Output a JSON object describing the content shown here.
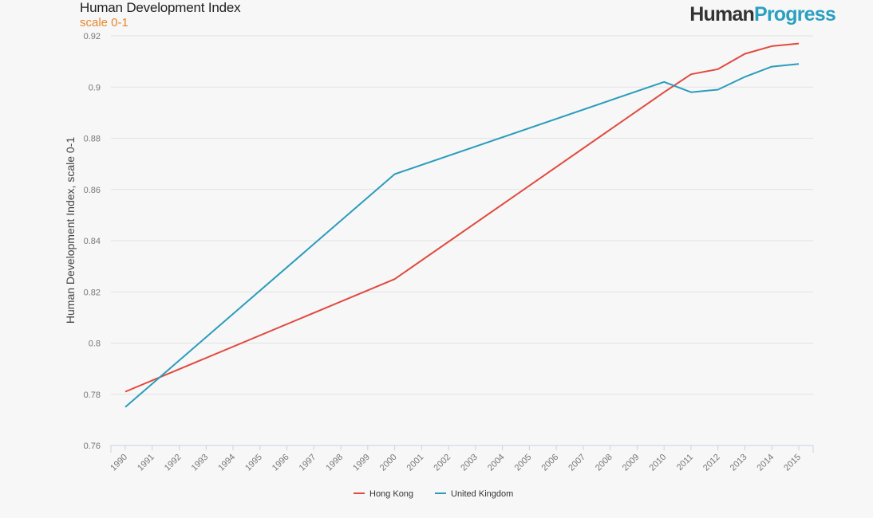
{
  "header": {
    "title": "Human Development Index",
    "subtitle": "scale 0-1",
    "logo_part1": "Human",
    "logo_part2": "Progress"
  },
  "chart_data": {
    "type": "line",
    "title": "Human Development Index",
    "subtitle": "scale 0-1",
    "ylabel": "Human Development Index, scale 0-1",
    "xlabel": "",
    "ylim": [
      0.76,
      0.92
    ],
    "yticks": [
      0.76,
      0.78,
      0.8,
      0.82,
      0.84,
      0.86,
      0.88,
      0.9,
      0.92
    ],
    "ytick_labels": [
      "0.76",
      "0.78",
      "0.8",
      "0.82",
      "0.84",
      "0.86",
      "0.88",
      "0.9",
      "0.92"
    ],
    "categories": [
      "1990",
      "1991",
      "1992",
      "1993",
      "1994",
      "1995",
      "1996",
      "1997",
      "1998",
      "1999",
      "2000",
      "2001",
      "2002",
      "2003",
      "2004",
      "2005",
      "2006",
      "2007",
      "2008",
      "2009",
      "2010",
      "2011",
      "2012",
      "2013",
      "2014",
      "2015"
    ],
    "grid": true,
    "legend_position": "bottom-center",
    "series": [
      {
        "name": "Hong Kong",
        "color": "#e04a3f",
        "points": [
          [
            1990,
            0.781
          ],
          [
            2000,
            0.825
          ],
          [
            2010,
            0.898
          ],
          [
            2011,
            0.905
          ],
          [
            2012,
            0.907
          ],
          [
            2013,
            0.913
          ],
          [
            2014,
            0.916
          ],
          [
            2015,
            0.917
          ]
        ]
      },
      {
        "name": "United Kingdom",
        "color": "#2b9cbc",
        "points": [
          [
            1990,
            0.775
          ],
          [
            2000,
            0.866
          ],
          [
            2010,
            0.902
          ],
          [
            2011,
            0.898
          ],
          [
            2012,
            0.899
          ],
          [
            2013,
            0.904
          ],
          [
            2014,
            0.908
          ],
          [
            2015,
            0.909
          ]
        ]
      }
    ]
  }
}
